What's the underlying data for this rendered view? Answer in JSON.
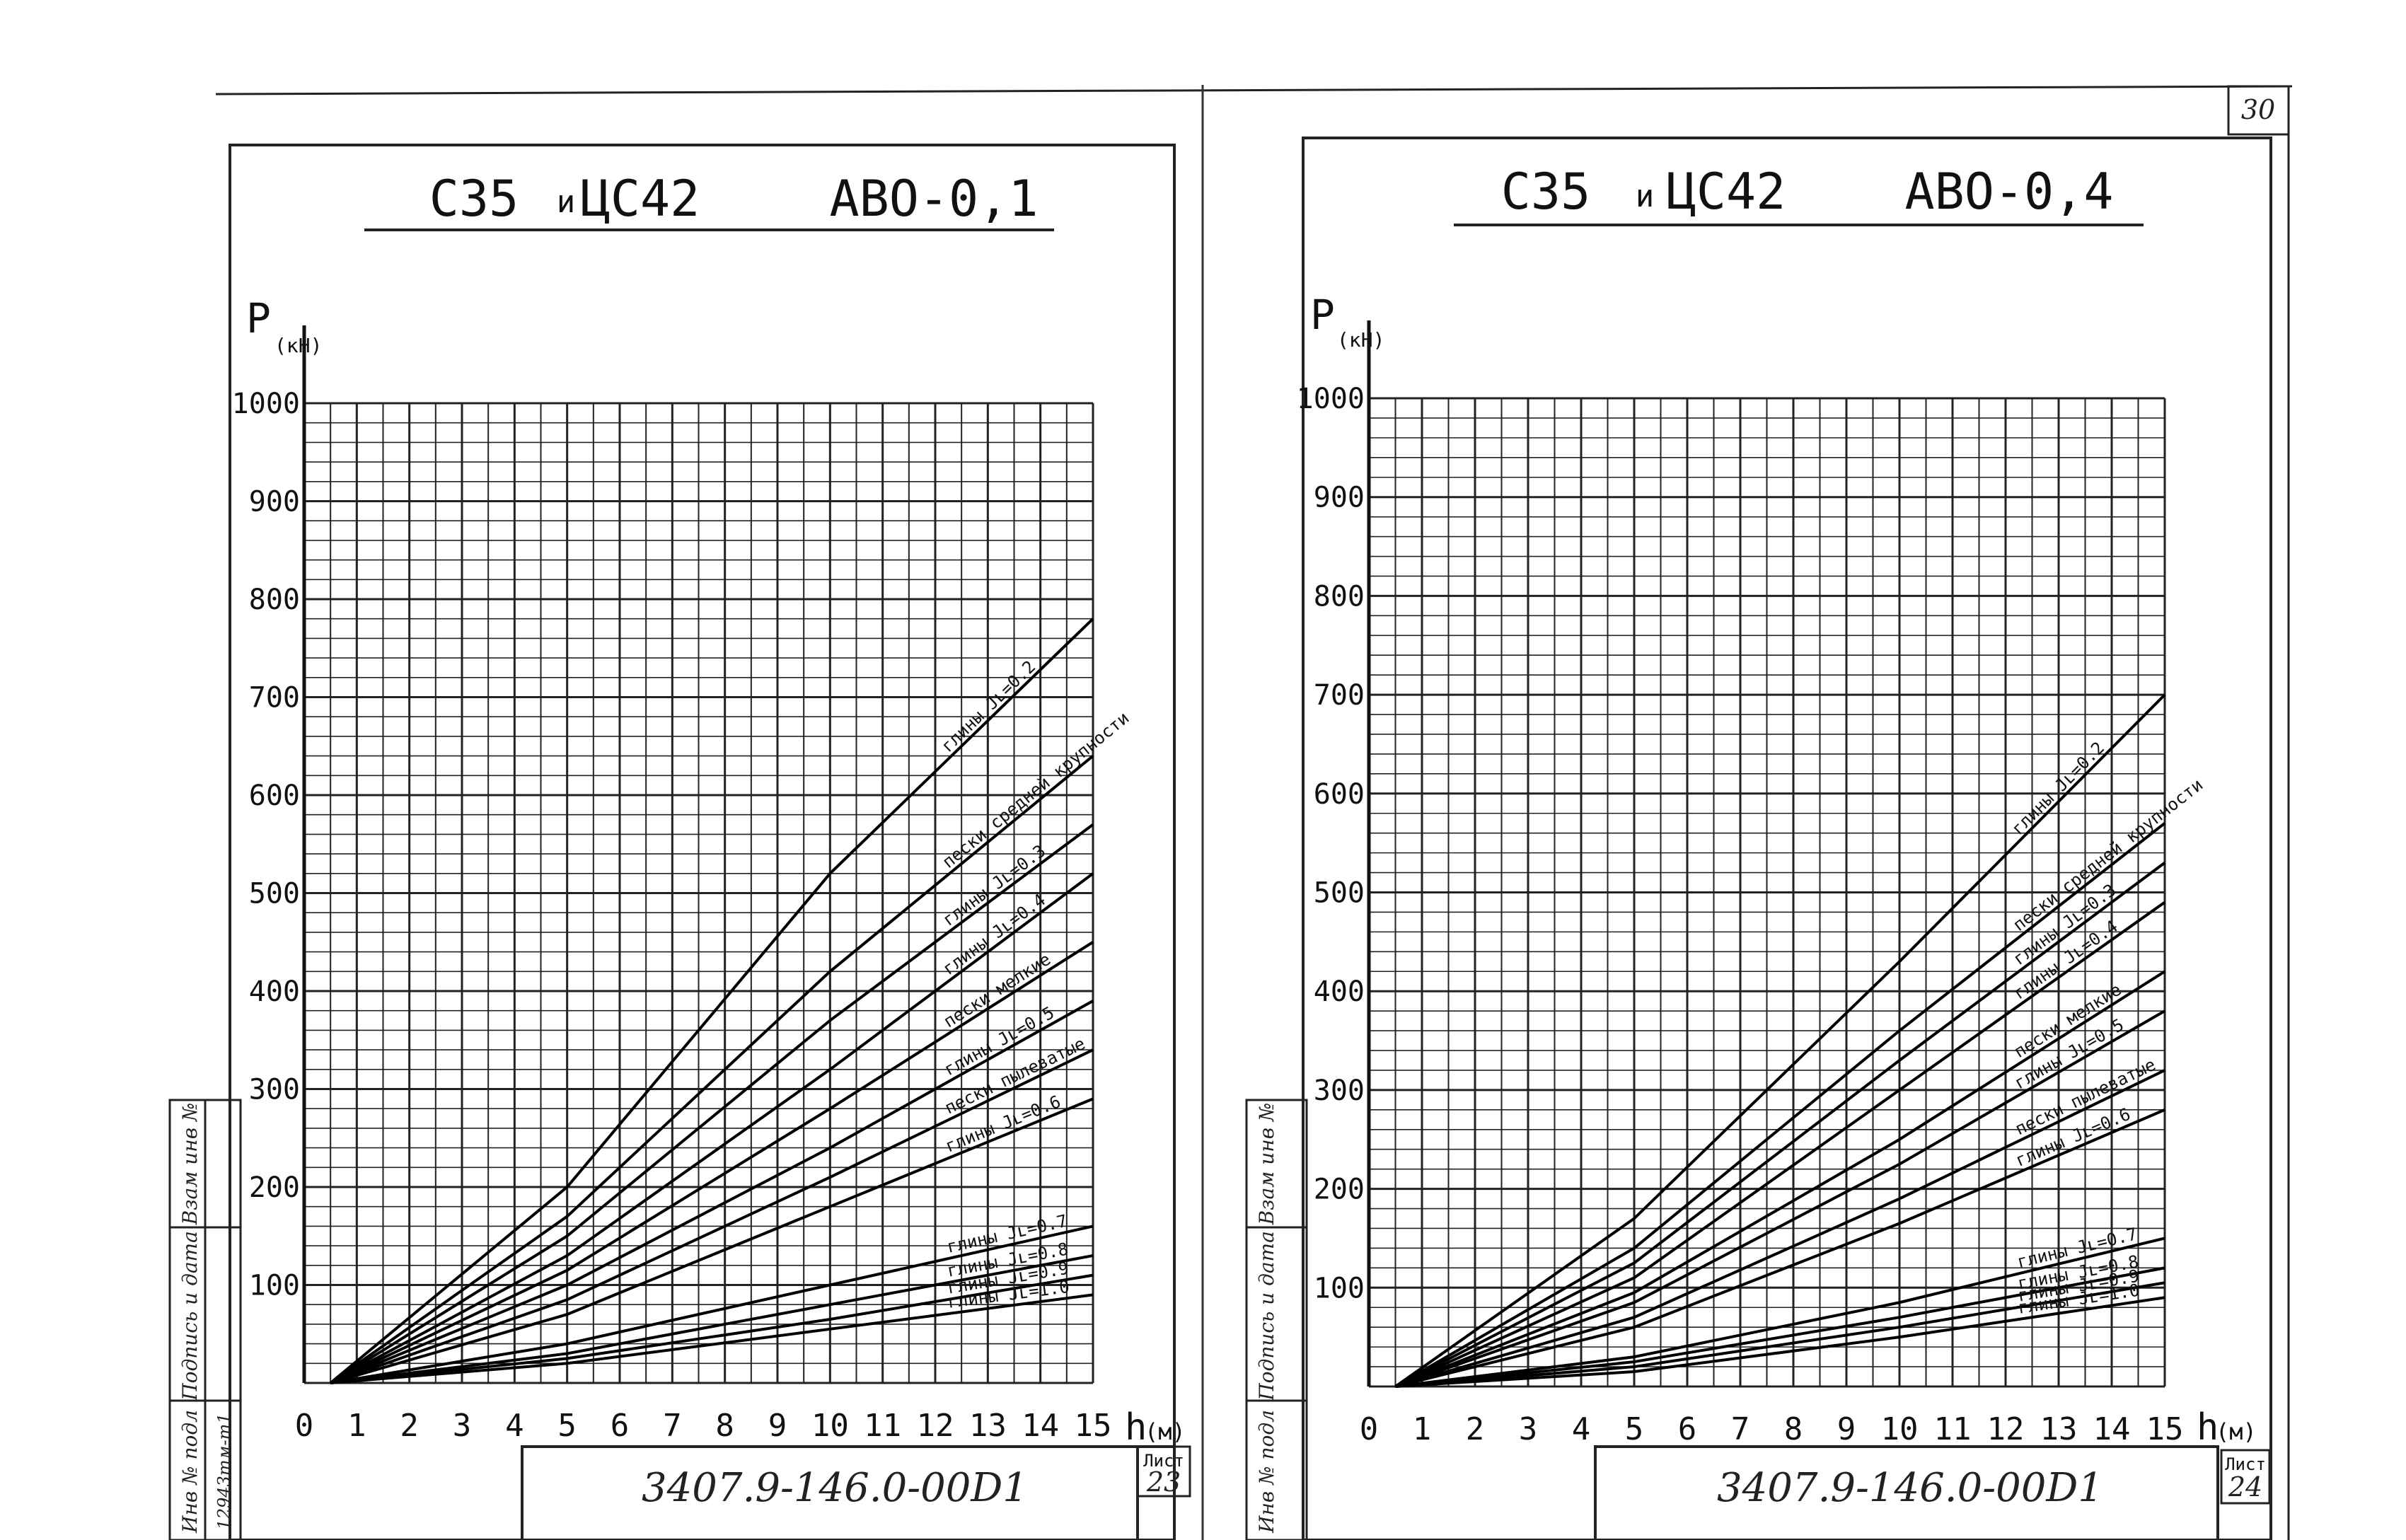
{
  "page_number": "30",
  "sheets": [
    {
      "title_left": "С35",
      "title_mid": "и",
      "title_right": "ЦС42",
      "title_type": "АВО-0,1",
      "y_axis_label": "P",
      "y_axis_unit": "(кН)",
      "x_axis_label": "h",
      "x_axis_unit": "(м)",
      "doc_code": "3407.9-146.0-00D1",
      "sheet_label": "Лист",
      "sheet_number": "23"
    },
    {
      "title_left": "С35",
      "title_mid": "и",
      "title_right": "ЦС42",
      "title_type": "АВО-0,4",
      "y_axis_label": "P",
      "y_axis_unit": "(кН)",
      "x_axis_label": "h",
      "x_axis_unit": "(м)",
      "doc_code": "3407.9-146.0-00D1",
      "sheet_label": "Лист",
      "sheet_number": "24"
    }
  ],
  "stamp": {
    "inv_podl": "Инв № подл",
    "podpis": "Подпись и дата",
    "vzam": "Взам инв №",
    "inv_number": "12943тм-т1"
  },
  "chart_data": [
    {
      "type": "line",
      "title": "С35 и ЦС42 АВО-0,1",
      "xlabel": "h (м)",
      "ylabel": "P (кН)",
      "x_ticks": [
        "0",
        "1",
        "2",
        "3",
        "4",
        "5",
        "6",
        "7",
        "8",
        "9",
        "10",
        "11",
        "12",
        "13",
        "14",
        "15"
      ],
      "y_ticks": [
        "100",
        "200",
        "300",
        "400",
        "500",
        "600",
        "700",
        "800",
        "900",
        "1000"
      ],
      "xlim": [
        0,
        15
      ],
      "ylim": [
        0,
        1000
      ],
      "grid": true,
      "series": [
        {
          "name": "глины Jʟ=0.2",
          "x": [
            0.5,
            5,
            10,
            15
          ],
          "y": [
            0,
            200,
            520,
            780
          ]
        },
        {
          "name": "пески средней крупности",
          "x": [
            0.5,
            5,
            10,
            15
          ],
          "y": [
            0,
            170,
            420,
            640
          ]
        },
        {
          "name": "глины Jʟ=0.3",
          "x": [
            0.5,
            5,
            10,
            15
          ],
          "y": [
            0,
            150,
            370,
            570
          ]
        },
        {
          "name": "глины Jʟ=0.4",
          "x": [
            0.5,
            5,
            10,
            15
          ],
          "y": [
            0,
            130,
            320,
            520
          ]
        },
        {
          "name": "пески мелкие",
          "x": [
            0.5,
            5,
            10,
            15
          ],
          "y": [
            0,
            115,
            280,
            450
          ]
        },
        {
          "name": "глины Jʟ=0.5",
          "x": [
            0.5,
            5,
            10,
            15
          ],
          "y": [
            0,
            100,
            240,
            390
          ]
        },
        {
          "name": "пески пылеватые",
          "x": [
            0.5,
            5,
            10,
            15
          ],
          "y": [
            0,
            85,
            210,
            340
          ]
        },
        {
          "name": "глины Jʟ=0.6",
          "x": [
            0.5,
            5,
            10,
            15
          ],
          "y": [
            0,
            70,
            180,
            290
          ]
        },
        {
          "name": "глины Jʟ=0.7",
          "x": [
            0.5,
            5,
            10,
            15
          ],
          "y": [
            0,
            40,
            100,
            160
          ]
        },
        {
          "name": "глины Jʟ=0.8",
          "x": [
            0.5,
            5,
            10,
            15
          ],
          "y": [
            0,
            30,
            80,
            130
          ]
        },
        {
          "name": "глины Jʟ=0.9",
          "x": [
            0.5,
            5,
            10,
            15
          ],
          "y": [
            0,
            25,
            65,
            110
          ]
        },
        {
          "name": "глины Jʟ=1.0",
          "x": [
            0.5,
            5,
            10,
            15
          ],
          "y": [
            0,
            20,
            55,
            90
          ]
        }
      ]
    },
    {
      "type": "line",
      "title": "С35 и ЦС42 АВО-0,4",
      "xlabel": "h (м)",
      "ylabel": "P (кН)",
      "x_ticks": [
        "0",
        "1",
        "2",
        "3",
        "4",
        "5",
        "6",
        "7",
        "8",
        "9",
        "10",
        "11",
        "12",
        "13",
        "14",
        "15"
      ],
      "y_ticks": [
        "100",
        "200",
        "300",
        "400",
        "500",
        "600",
        "700",
        "800",
        "900",
        "1000"
      ],
      "xlim": [
        0,
        15
      ],
      "ylim": [
        0,
        1000
      ],
      "grid": true,
      "series": [
        {
          "name": "глины Jʟ=0.2",
          "x": [
            0.5,
            5,
            10,
            15
          ],
          "y": [
            0,
            170,
            430,
            700
          ]
        },
        {
          "name": "пески средней крупности",
          "x": [
            0.5,
            5,
            10,
            15
          ],
          "y": [
            0,
            140,
            360,
            570
          ]
        },
        {
          "name": "глины Jʟ=0.3",
          "x": [
            0.5,
            5,
            10,
            15
          ],
          "y": [
            0,
            125,
            330,
            530
          ]
        },
        {
          "name": "глины Jʟ=0.4",
          "x": [
            0.5,
            5,
            10,
            15
          ],
          "y": [
            0,
            110,
            300,
            490
          ]
        },
        {
          "name": "пески мелкие",
          "x": [
            0.5,
            5,
            10,
            15
          ],
          "y": [
            0,
            95,
            250,
            420
          ]
        },
        {
          "name": "глины Jʟ=0.5",
          "x": [
            0.5,
            5,
            10,
            15
          ],
          "y": [
            0,
            85,
            225,
            380
          ]
        },
        {
          "name": "пески пылеватые",
          "x": [
            0.5,
            5,
            10,
            15
          ],
          "y": [
            0,
            70,
            190,
            320
          ]
        },
        {
          "name": "глины Jʟ=0.6",
          "x": [
            0.5,
            5,
            10,
            15
          ],
          "y": [
            0,
            60,
            165,
            280
          ]
        },
        {
          "name": "глины Jʟ=0.7",
          "x": [
            0.5,
            5,
            10,
            15
          ],
          "y": [
            0,
            30,
            85,
            150
          ]
        },
        {
          "name": "глины Jʟ=0.8",
          "x": [
            0.5,
            5,
            10,
            15
          ],
          "y": [
            0,
            25,
            70,
            120
          ]
        },
        {
          "name": "глины Jʟ=0.9",
          "x": [
            0.5,
            5,
            10,
            15
          ],
          "y": [
            0,
            20,
            60,
            105
          ]
        },
        {
          "name": "глины Jʟ=1.0",
          "x": [
            0.5,
            5,
            10,
            15
          ],
          "y": [
            0,
            15,
            50,
            90
          ]
        }
      ]
    }
  ]
}
